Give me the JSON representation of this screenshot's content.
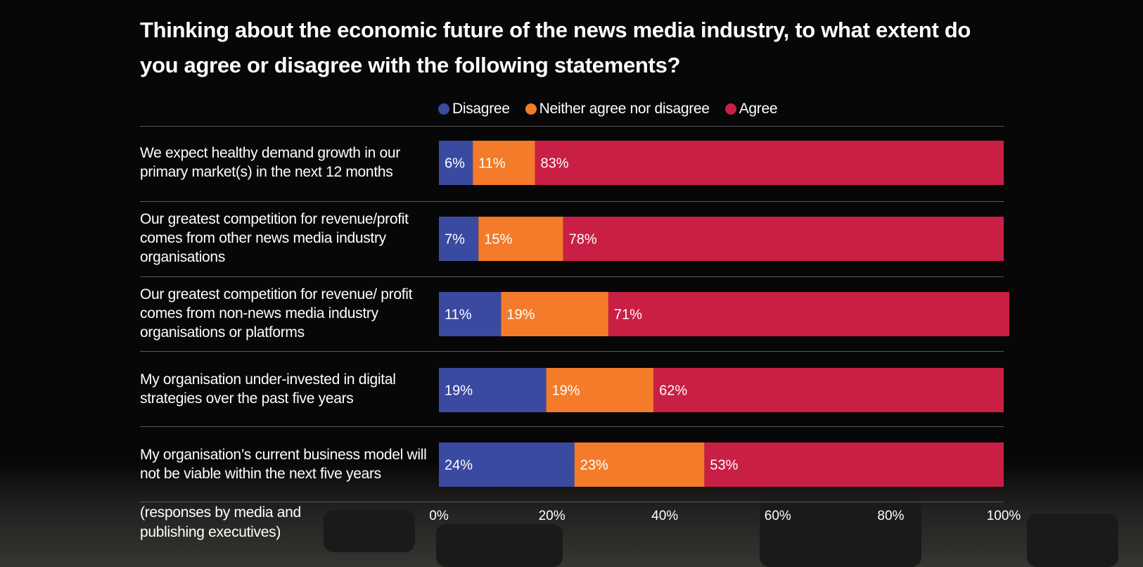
{
  "chart_data": {
    "type": "bar",
    "orientation": "horizontal",
    "stacked": true,
    "title": "Thinking about the economic future of the news media industry, to what extent do you agree or disagree with the following statements?",
    "note": "(responses by media and publishing executives)",
    "categories": [
      "We expect healthy demand growth in our primary market(s) in the next 12 months",
      "Our greatest competition for revenue/profit comes from other news media industry organisations",
      "Our greatest competition for revenue/ profit comes from non-news media industry organisations or platforms",
      "My organisation under-invested in digital strategies over the past five years",
      "My organisation’s current business model will not be viable within the next five years"
    ],
    "series": [
      {
        "name": "Disagree",
        "color": "#3a4aa1",
        "values": [
          6,
          7,
          11,
          19,
          24
        ],
        "labels": [
          "6%",
          "7%",
          "11%",
          "19%",
          "24%"
        ]
      },
      {
        "name": "Neither agree nor disagree",
        "color": "#f47b2a",
        "values": [
          11,
          15,
          19,
          19,
          23
        ],
        "labels": [
          "11%",
          "15%",
          "19%",
          "19%",
          "23%"
        ]
      },
      {
        "name": "Agree",
        "color": "#c91f45",
        "values": [
          83,
          78,
          71,
          62,
          53
        ],
        "labels": [
          "83%",
          "78%",
          "71%",
          "62%",
          "53%"
        ]
      }
    ],
    "xlim": [
      0,
      100
    ],
    "xticks": [
      "0%",
      "20%",
      "40%",
      "60%",
      "80%",
      "100%"
    ],
    "legend_position": "top",
    "grid": false
  }
}
